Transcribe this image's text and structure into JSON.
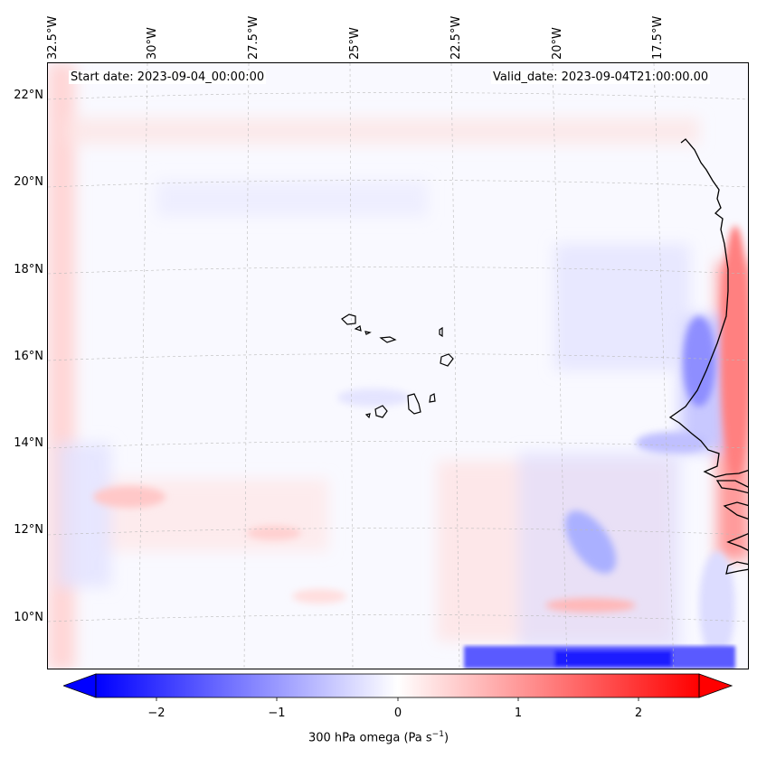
{
  "map": {
    "start_date_text": "Start date: 2023-09-04_00:00:00",
    "valid_date_text": "Valid_date: 2023-09-04T21:00:00.00",
    "lon_labels": [
      "32.5°W",
      "30°W",
      "27.5°W",
      "25°W",
      "22.5°W",
      "20°W",
      "17.5°W"
    ],
    "lat_labels": [
      "22°N",
      "20°N",
      "18°N",
      "16°N",
      "14°N",
      "12°N",
      "10°N"
    ],
    "gridlines": true,
    "colormap": "bwr",
    "colors": {
      "negative": "#0000ff",
      "zero": "#ffffff",
      "positive": "#ff0000",
      "coast": "#000000"
    }
  },
  "colorbar": {
    "label": "300 hPa omega (Pa s",
    "label_sup": "−1",
    "label_close": ")",
    "ticks": [
      "−2",
      "−1",
      "0",
      "1",
      "2"
    ],
    "range": [
      -2.5,
      2.5
    ],
    "extend": "both"
  }
}
